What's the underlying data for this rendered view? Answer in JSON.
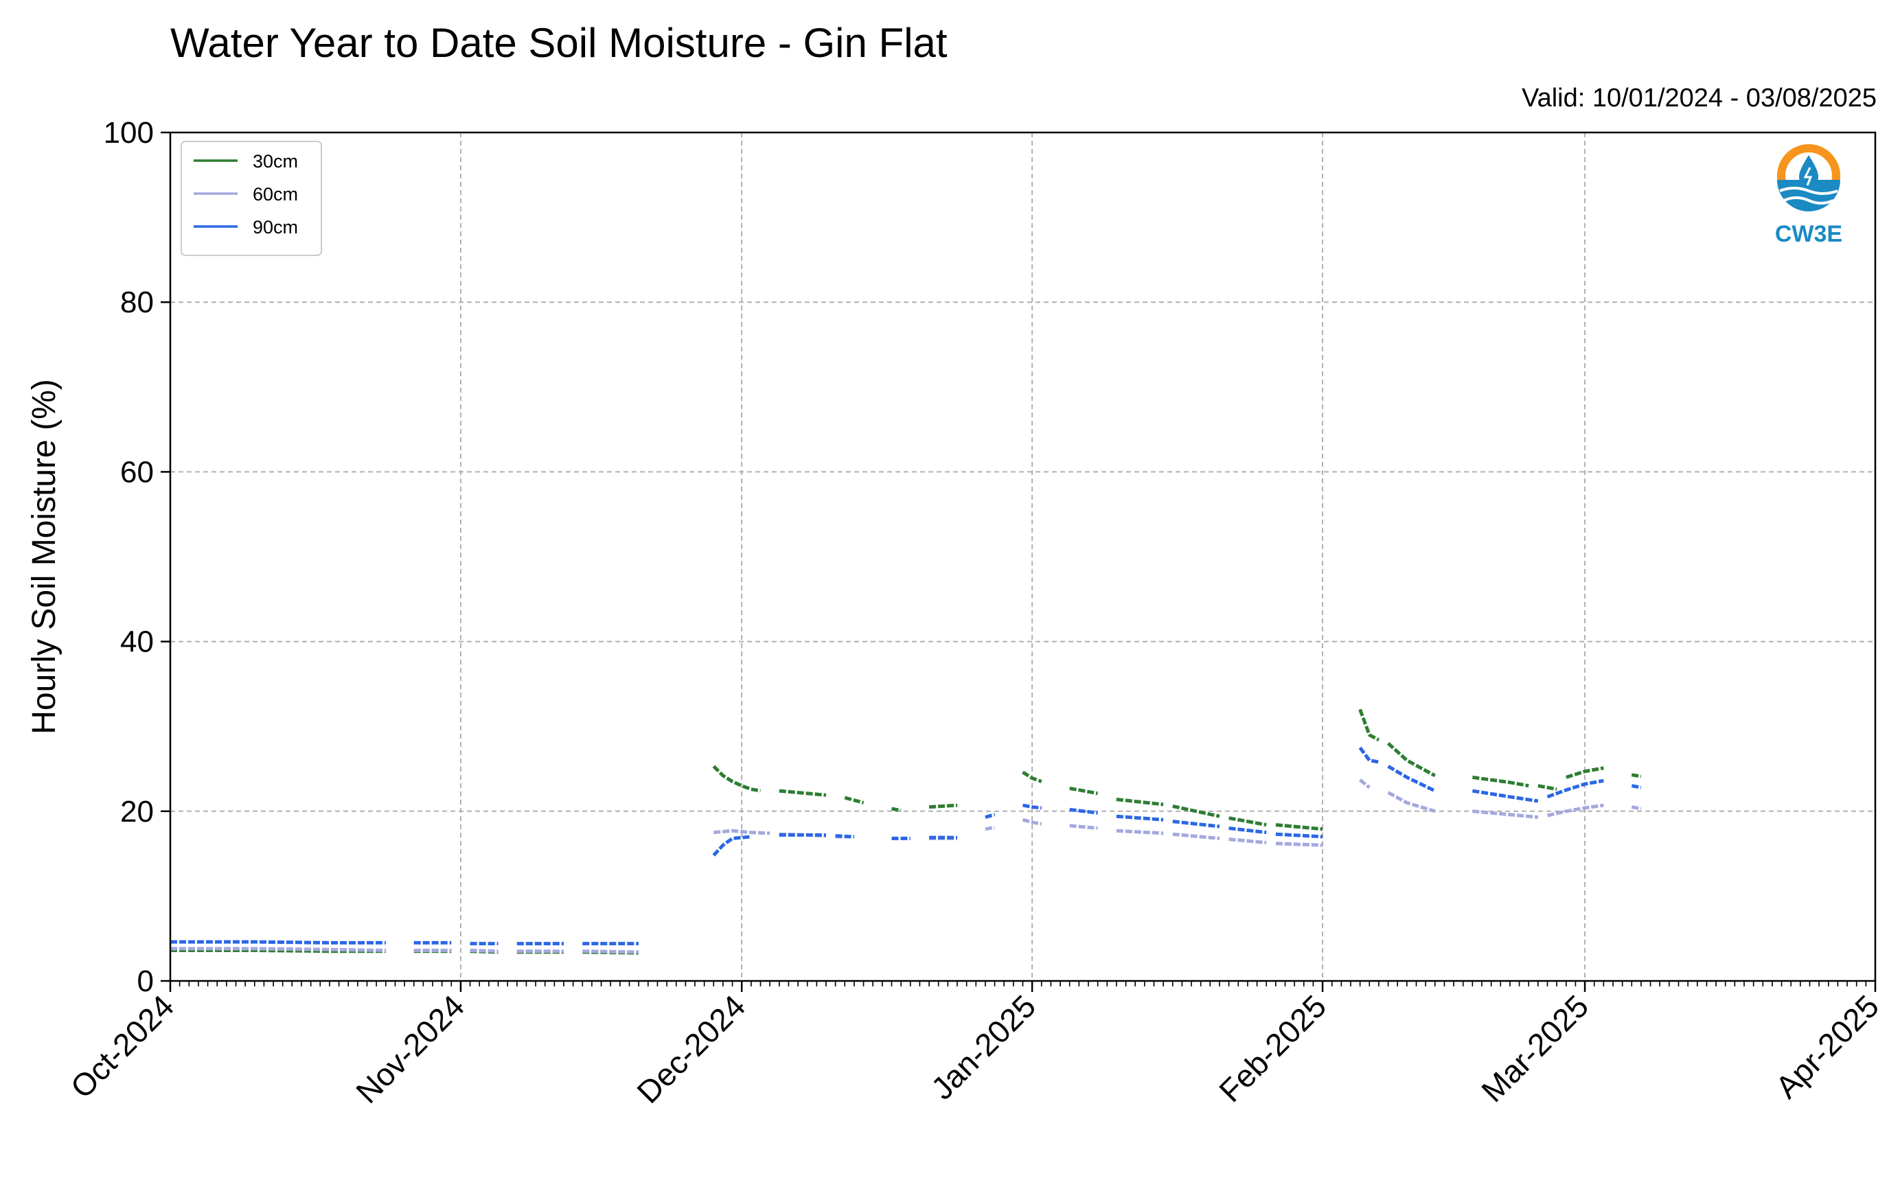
{
  "chart_data": {
    "type": "line",
    "title": "Water Year to Date Soil Moisture - Gin Flat",
    "subtitle": "Valid: 10/01/2024 - 03/08/2025",
    "ylabel": "Hourly Soil Moisture (%)",
    "xlabel": "",
    "xlim": [
      "2024-10-01",
      "2025-04-01"
    ],
    "ylim": [
      0,
      100
    ],
    "y_ticks": [
      0,
      20,
      40,
      60,
      80,
      100
    ],
    "x_ticks": [
      {
        "date": "2024-10-01",
        "label": "Oct-2024"
      },
      {
        "date": "2024-11-01",
        "label": "Nov-2024"
      },
      {
        "date": "2024-12-01",
        "label": "Dec-2024"
      },
      {
        "date": "2025-01-01",
        "label": "Jan-2025"
      },
      {
        "date": "2025-02-01",
        "label": "Feb-2025"
      },
      {
        "date": "2025-03-01",
        "label": "Mar-2025"
      },
      {
        "date": "2025-04-01",
        "label": "Apr-2025"
      }
    ],
    "grid": true,
    "legend_position": "top-left",
    "series": [
      {
        "name": "30cm",
        "color": "#2e7d32",
        "segments": [
          [
            [
              "2024-10-01",
              3.6
            ],
            [
              "2024-10-10",
              3.6
            ],
            [
              "2024-10-18",
              3.5
            ],
            [
              "2024-10-24",
              3.5
            ]
          ],
          [
            [
              "2024-10-27",
              3.5
            ],
            [
              "2024-10-31",
              3.5
            ]
          ],
          [
            [
              "2024-11-02",
              3.5
            ],
            [
              "2024-11-05",
              3.4
            ]
          ],
          [
            [
              "2024-11-07",
              3.4
            ],
            [
              "2024-11-12",
              3.4
            ]
          ],
          [
            [
              "2024-11-14",
              3.4
            ],
            [
              "2024-11-20",
              3.3
            ]
          ],
          [
            [
              "2024-11-28",
              25.3
            ],
            [
              "2024-11-29",
              24.2
            ],
            [
              "2024-11-30",
              23.5
            ],
            [
              "2024-12-01",
              23.0
            ],
            [
              "2024-12-02",
              22.6
            ],
            [
              "2024-12-03",
              22.4
            ]
          ],
          [
            [
              "2024-12-05",
              22.4
            ],
            [
              "2024-12-08",
              22.1
            ],
            [
              "2024-12-10",
              21.9
            ]
          ],
          [
            [
              "2024-12-12",
              21.6
            ],
            [
              "2024-12-14",
              21.0
            ]
          ],
          [
            [
              "2024-12-17",
              20.3
            ],
            [
              "2024-12-18",
              20.1
            ]
          ],
          [
            [
              "2024-12-21",
              20.5
            ],
            [
              "2024-12-24",
              20.7
            ]
          ],
          [
            [
              "2024-12-31",
              24.6
            ],
            [
              "2025-01-01",
              23.9
            ],
            [
              "2025-01-02",
              23.5
            ]
          ],
          [
            [
              "2025-01-05",
              22.7
            ],
            [
              "2025-01-08",
              22.1
            ]
          ],
          [
            [
              "2025-01-10",
              21.4
            ],
            [
              "2025-01-15",
              20.8
            ]
          ],
          [
            [
              "2025-01-16",
              20.6
            ],
            [
              "2025-01-21",
              19.4
            ]
          ],
          [
            [
              "2025-01-22",
              19.2
            ],
            [
              "2025-01-26",
              18.4
            ]
          ],
          [
            [
              "2025-01-27",
              18.4
            ],
            [
              "2025-02-01",
              17.9
            ]
          ],
          [
            [
              "2025-02-05",
              32.0
            ],
            [
              "2025-02-06",
              29.0
            ],
            [
              "2025-02-07",
              28.4
            ]
          ],
          [
            [
              "2025-02-08",
              28.0
            ],
            [
              "2025-02-10",
              26.0
            ],
            [
              "2025-02-12",
              24.8
            ],
            [
              "2025-02-13",
              24.2
            ]
          ],
          [
            [
              "2025-02-17",
              24.0
            ],
            [
              "2025-02-21",
              23.4
            ],
            [
              "2025-02-23",
              23.0
            ]
          ],
          [
            [
              "2025-02-24",
              23.0
            ],
            [
              "2025-02-26",
              22.6
            ]
          ],
          [
            [
              "2025-02-27",
              24.0
            ],
            [
              "2025-03-01",
              24.7
            ],
            [
              "2025-03-03",
              25.1
            ]
          ],
          [
            [
              "2025-03-06",
              24.3
            ],
            [
              "2025-03-07",
              24.1
            ]
          ]
        ]
      },
      {
        "name": "60cm",
        "color": "#a4a9dd",
        "segments": [
          [
            [
              "2024-10-01",
              3.8
            ],
            [
              "2024-10-10",
              3.8
            ],
            [
              "2024-10-18",
              3.7
            ],
            [
              "2024-10-24",
              3.6
            ]
          ],
          [
            [
              "2024-10-27",
              3.6
            ],
            [
              "2024-10-31",
              3.6
            ]
          ],
          [
            [
              "2024-11-02",
              3.6
            ],
            [
              "2024-11-05",
              3.5
            ]
          ],
          [
            [
              "2024-11-07",
              3.5
            ],
            [
              "2024-11-12",
              3.5
            ]
          ],
          [
            [
              "2024-11-14",
              3.5
            ],
            [
              "2024-11-20",
              3.4
            ]
          ],
          [
            [
              "2024-11-28",
              17.5
            ],
            [
              "2024-11-30",
              17.7
            ],
            [
              "2024-12-02",
              17.5
            ],
            [
              "2024-12-04",
              17.4
            ]
          ],
          [
            [
              "2024-12-05",
              17.3
            ],
            [
              "2024-12-08",
              17.2
            ],
            [
              "2024-12-10",
              17.1
            ]
          ],
          [
            [
              "2024-12-11",
              17.0
            ],
            [
              "2024-12-13",
              17.0
            ]
          ],
          [
            [
              "2024-12-17",
              16.8
            ],
            [
              "2024-12-19",
              16.8
            ]
          ],
          [
            [
              "2024-12-21",
              16.8
            ],
            [
              "2024-12-24",
              16.8
            ]
          ],
          [
            [
              "2024-12-27",
              17.9
            ],
            [
              "2024-12-28",
              18.1
            ]
          ],
          [
            [
              "2024-12-31",
              19.0
            ],
            [
              "2025-01-01",
              18.7
            ],
            [
              "2025-01-02",
              18.5
            ]
          ],
          [
            [
              "2025-01-05",
              18.3
            ],
            [
              "2025-01-08",
              18.0
            ]
          ],
          [
            [
              "2025-01-10",
              17.7
            ],
            [
              "2025-01-15",
              17.4
            ]
          ],
          [
            [
              "2025-01-16",
              17.3
            ],
            [
              "2025-01-21",
              16.8
            ]
          ],
          [
            [
              "2025-01-22",
              16.7
            ],
            [
              "2025-01-26",
              16.3
            ]
          ],
          [
            [
              "2025-01-27",
              16.2
            ],
            [
              "2025-02-01",
              16.0
            ]
          ],
          [
            [
              "2025-02-05",
              23.7
            ],
            [
              "2025-02-06",
              22.8
            ]
          ],
          [
            [
              "2025-02-08",
              22.2
            ],
            [
              "2025-02-10",
              21.0
            ],
            [
              "2025-02-13",
              20.0
            ]
          ],
          [
            [
              "2025-02-17",
              20.0
            ],
            [
              "2025-02-21",
              19.6
            ],
            [
              "2025-02-24",
              19.3
            ]
          ],
          [
            [
              "2025-02-25",
              19.5
            ],
            [
              "2025-02-27",
              20.0
            ],
            [
              "2025-03-01",
              20.4
            ],
            [
              "2025-03-03",
              20.7
            ]
          ],
          [
            [
              "2025-03-06",
              20.5
            ],
            [
              "2025-03-07",
              20.3
            ]
          ]
        ]
      },
      {
        "name": "90cm",
        "color": "#2b67e6",
        "segments": [
          [
            [
              "2024-10-01",
              4.6
            ],
            [
              "2024-10-10",
              4.6
            ],
            [
              "2024-10-18",
              4.5
            ],
            [
              "2024-10-24",
              4.5
            ]
          ],
          [
            [
              "2024-10-27",
              4.5
            ],
            [
              "2024-10-31",
              4.5
            ]
          ],
          [
            [
              "2024-11-02",
              4.4
            ],
            [
              "2024-11-05",
              4.4
            ]
          ],
          [
            [
              "2024-11-07",
              4.4
            ],
            [
              "2024-11-12",
              4.4
            ]
          ],
          [
            [
              "2024-11-14",
              4.4
            ],
            [
              "2024-11-20",
              4.4
            ]
          ],
          [
            [
              "2024-11-28",
              14.8
            ],
            [
              "2024-11-29",
              16.0
            ],
            [
              "2024-11-30",
              16.8
            ],
            [
              "2024-12-01",
              16.9
            ],
            [
              "2024-12-02",
              17.0
            ]
          ],
          [
            [
              "2024-12-05",
              17.2
            ],
            [
              "2024-12-08",
              17.2
            ],
            [
              "2024-12-10",
              17.2
            ]
          ],
          [
            [
              "2024-12-11",
              17.1
            ],
            [
              "2024-12-13",
              17.0
            ]
          ],
          [
            [
              "2024-12-17",
              16.8
            ],
            [
              "2024-12-19",
              16.8
            ]
          ],
          [
            [
              "2024-12-21",
              16.9
            ],
            [
              "2024-12-24",
              16.9
            ]
          ],
          [
            [
              "2024-12-27",
              19.3
            ],
            [
              "2024-12-28",
              19.6
            ]
          ],
          [
            [
              "2024-12-31",
              20.7
            ],
            [
              "2025-01-01",
              20.5
            ],
            [
              "2025-01-02",
              20.4
            ]
          ],
          [
            [
              "2025-01-05",
              20.2
            ],
            [
              "2025-01-08",
              19.8
            ]
          ],
          [
            [
              "2025-01-10",
              19.4
            ],
            [
              "2025-01-15",
              19.0
            ]
          ],
          [
            [
              "2025-01-16",
              18.8
            ],
            [
              "2025-01-21",
              18.2
            ]
          ],
          [
            [
              "2025-01-22",
              18.0
            ],
            [
              "2025-01-26",
              17.5
            ]
          ],
          [
            [
              "2025-01-27",
              17.3
            ],
            [
              "2025-02-01",
              17.0
            ]
          ],
          [
            [
              "2025-02-05",
              27.5
            ],
            [
              "2025-02-06",
              26.0
            ],
            [
              "2025-02-07",
              25.8
            ]
          ],
          [
            [
              "2025-02-08",
              25.3
            ],
            [
              "2025-02-10",
              24.0
            ],
            [
              "2025-02-13",
              22.4
            ]
          ],
          [
            [
              "2025-02-17",
              22.4
            ],
            [
              "2025-02-21",
              21.7
            ],
            [
              "2025-02-24",
              21.2
            ]
          ],
          [
            [
              "2025-02-25",
              21.7
            ],
            [
              "2025-02-27",
              22.5
            ],
            [
              "2025-03-01",
              23.2
            ],
            [
              "2025-03-03",
              23.6
            ]
          ],
          [
            [
              "2025-03-06",
              23.0
            ],
            [
              "2025-03-07",
              22.8
            ]
          ]
        ]
      }
    ]
  },
  "logo": {
    "text": "CW3E",
    "icon": "water-drop-logo-icon",
    "colors": {
      "ring": "#f7941d",
      "water": "#1b8ac3"
    }
  },
  "colors": {
    "grid": "#b0b0b0",
    "axis": "#000000",
    "background": "#ffffff"
  }
}
